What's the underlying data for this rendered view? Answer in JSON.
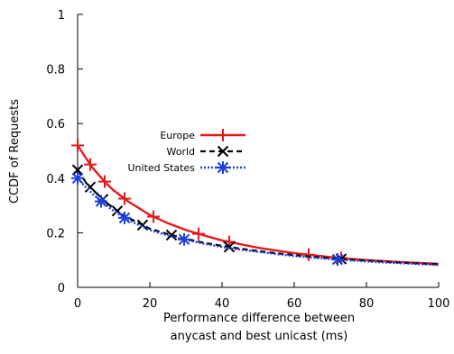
{
  "chart_data": {
    "type": "line",
    "xlabel": [
      "Performance difference between",
      "anycast and best unicast (ms)"
    ],
    "ylabel": "CCDF of Requests",
    "xlim": [
      0,
      100
    ],
    "ylim": [
      0,
      1
    ],
    "xticks": [
      0,
      20,
      40,
      60,
      80,
      100
    ],
    "yticks": [
      0,
      0.2,
      0.4,
      0.6,
      0.8,
      1
    ],
    "ytick_labels": [
      "0",
      "0.2",
      "0.4",
      "0.6",
      "0.8",
      "1"
    ],
    "legend_position": "center",
    "series": [
      {
        "name": "Europe",
        "color": "#e41a1c",
        "dash": "solid",
        "marker": "plus",
        "x": [
          0,
          2,
          4,
          6,
          8,
          10,
          12,
          14,
          17,
          20,
          25,
          30,
          35,
          40,
          45,
          50,
          55,
          60,
          65,
          70,
          75,
          80,
          85,
          90,
          95,
          100
        ],
        "y": [
          0.52,
          0.48,
          0.44,
          0.41,
          0.38,
          0.355,
          0.335,
          0.315,
          0.29,
          0.265,
          0.235,
          0.21,
          0.19,
          0.172,
          0.158,
          0.145,
          0.135,
          0.125,
          0.118,
          0.111,
          0.105,
          0.1,
          0.096,
          0.092,
          0.089,
          0.086
        ],
        "marker_x": [
          0,
          3.5,
          7.5,
          13,
          21,
          33.5,
          42,
          64,
          73
        ]
      },
      {
        "name": "World",
        "color": "#000000",
        "dash": "dashed",
        "marker": "x",
        "x": [
          0,
          2,
          4,
          6,
          8,
          10,
          12,
          14,
          17,
          20,
          25,
          30,
          35,
          40,
          45,
          50,
          55,
          60,
          65,
          70,
          75,
          80,
          85,
          90,
          95,
          100
        ],
        "y": [
          0.43,
          0.39,
          0.36,
          0.335,
          0.31,
          0.29,
          0.27,
          0.255,
          0.235,
          0.215,
          0.195,
          0.178,
          0.163,
          0.152,
          0.142,
          0.133,
          0.125,
          0.118,
          0.112,
          0.107,
          0.102,
          0.098,
          0.094,
          0.09,
          0.087,
          0.084
        ],
        "marker_x": [
          0,
          3.5,
          7,
          11,
          18,
          26,
          42,
          73
        ]
      },
      {
        "name": "United States",
        "color": "#1f3fdd",
        "dash": "dotted",
        "marker": "star",
        "x": [
          0,
          2,
          4,
          6,
          8,
          10,
          12,
          14,
          17,
          20,
          25,
          30,
          35,
          40,
          45,
          50,
          55,
          60,
          65,
          70,
          75,
          80,
          85,
          90,
          95,
          100
        ],
        "y": [
          0.4,
          0.37,
          0.345,
          0.32,
          0.3,
          0.28,
          0.262,
          0.247,
          0.228,
          0.21,
          0.19,
          0.174,
          0.16,
          0.148,
          0.138,
          0.13,
          0.122,
          0.115,
          0.109,
          0.104,
          0.099,
          0.095,
          0.091,
          0.088,
          0.085,
          0.082
        ],
        "marker_x": [
          0,
          6.5,
          13,
          29.5,
          72
        ]
      }
    ]
  }
}
